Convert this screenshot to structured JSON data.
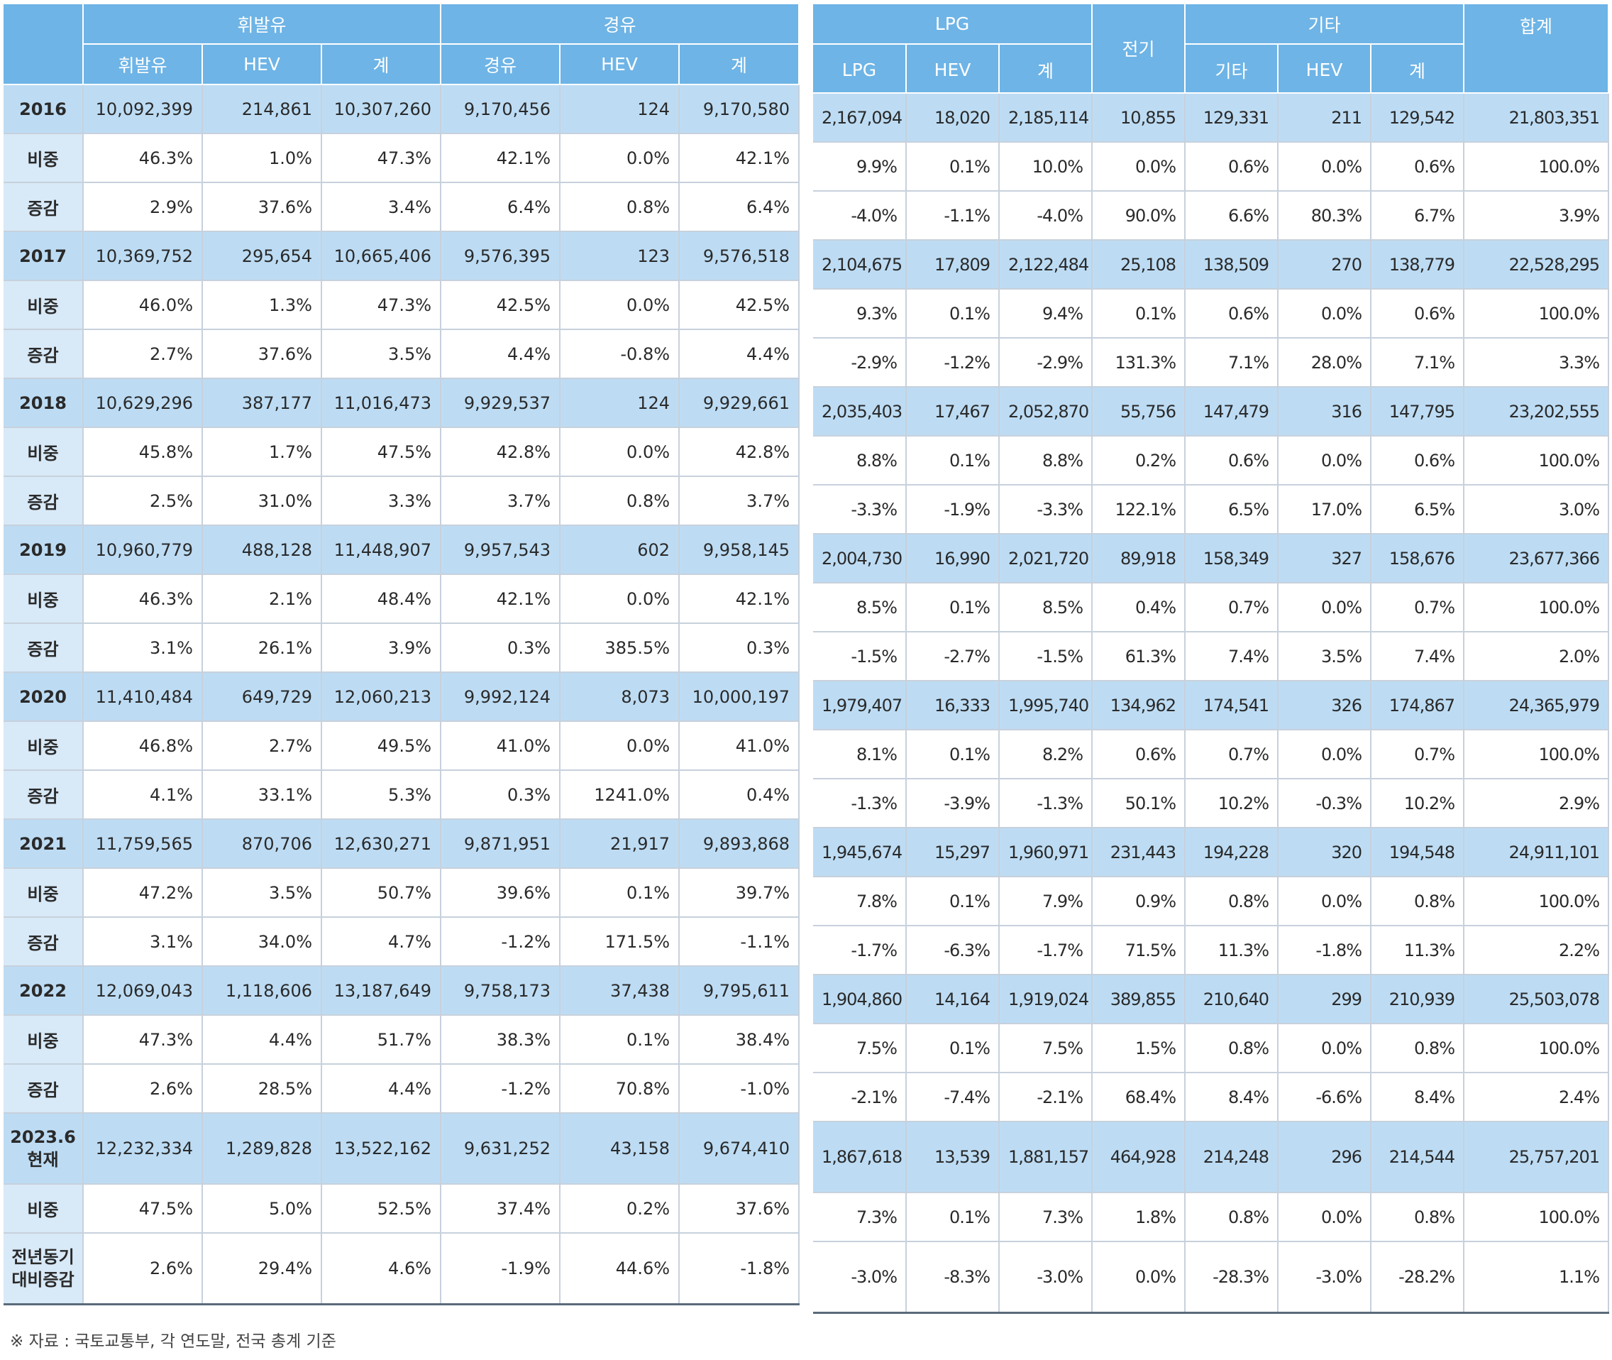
{
  "left_table": {
    "groups": [
      "휘발유",
      "경유"
    ],
    "subheaders": [
      "휘발유",
      "HEV",
      "계",
      "경유",
      "HEV",
      "계"
    ],
    "rows": [
      {
        "label": "2016",
        "type": "year",
        "cells": [
          "10,092,399",
          "214,861",
          "10,307,260",
          "9,170,456",
          "124",
          "9,170,580"
        ]
      },
      {
        "label": "비중",
        "type": "share",
        "cells": [
          "46.3%",
          "1.0%",
          "47.3%",
          "42.1%",
          "0.0%",
          "42.1%"
        ]
      },
      {
        "label": "증감",
        "type": "change",
        "cells": [
          "2.9%",
          "37.6%",
          "3.4%",
          "6.4%",
          "0.8%",
          "6.4%"
        ]
      },
      {
        "label": "2017",
        "type": "year",
        "cells": [
          "10,369,752",
          "295,654",
          "10,665,406",
          "9,576,395",
          "123",
          "9,576,518"
        ]
      },
      {
        "label": "비중",
        "type": "share",
        "cells": [
          "46.0%",
          "1.3%",
          "47.3%",
          "42.5%",
          "0.0%",
          "42.5%"
        ]
      },
      {
        "label": "증감",
        "type": "change",
        "cells": [
          "2.7%",
          "37.6%",
          "3.5%",
          "4.4%",
          "-0.8%",
          "4.4%"
        ]
      },
      {
        "label": "2018",
        "type": "year",
        "cells": [
          "10,629,296",
          "387,177",
          "11,016,473",
          "9,929,537",
          "124",
          "9,929,661"
        ]
      },
      {
        "label": "비중",
        "type": "share",
        "cells": [
          "45.8%",
          "1.7%",
          "47.5%",
          "42.8%",
          "0.0%",
          "42.8%"
        ]
      },
      {
        "label": "증감",
        "type": "change",
        "cells": [
          "2.5%",
          "31.0%",
          "3.3%",
          "3.7%",
          "0.8%",
          "3.7%"
        ]
      },
      {
        "label": "2019",
        "type": "year",
        "cells": [
          "10,960,779",
          "488,128",
          "11,448,907",
          "9,957,543",
          "602",
          "9,958,145"
        ]
      },
      {
        "label": "비중",
        "type": "share",
        "cells": [
          "46.3%",
          "2.1%",
          "48.4%",
          "42.1%",
          "0.0%",
          "42.1%"
        ]
      },
      {
        "label": "증감",
        "type": "change",
        "cells": [
          "3.1%",
          "26.1%",
          "3.9%",
          "0.3%",
          "385.5%",
          "0.3%"
        ]
      },
      {
        "label": "2020",
        "type": "year",
        "cells": [
          "11,410,484",
          "649,729",
          "12,060,213",
          "9,992,124",
          "8,073",
          "10,000,197"
        ]
      },
      {
        "label": "비중",
        "type": "share",
        "cells": [
          "46.8%",
          "2.7%",
          "49.5%",
          "41.0%",
          "0.0%",
          "41.0%"
        ]
      },
      {
        "label": "증감",
        "type": "change",
        "cells": [
          "4.1%",
          "33.1%",
          "5.3%",
          "0.3%",
          "1241.0%",
          "0.4%"
        ]
      },
      {
        "label": "2021",
        "type": "year",
        "cells": [
          "11,759,565",
          "870,706",
          "12,630,271",
          "9,871,951",
          "21,917",
          "9,893,868"
        ]
      },
      {
        "label": "비중",
        "type": "share",
        "cells": [
          "47.2%",
          "3.5%",
          "50.7%",
          "39.6%",
          "0.1%",
          "39.7%"
        ]
      },
      {
        "label": "증감",
        "type": "change",
        "cells": [
          "3.1%",
          "34.0%",
          "4.7%",
          "-1.2%",
          "171.5%",
          "-1.1%"
        ]
      },
      {
        "label": "2022",
        "type": "year",
        "cells": [
          "12,069,043",
          "1,118,606",
          "13,187,649",
          "9,758,173",
          "37,438",
          "9,795,611"
        ]
      },
      {
        "label": "비중",
        "type": "share",
        "cells": [
          "47.3%",
          "4.4%",
          "51.7%",
          "38.3%",
          "0.1%",
          "38.4%"
        ]
      },
      {
        "label": "증감",
        "type": "change",
        "cells": [
          "2.6%",
          "28.5%",
          "4.4%",
          "-1.2%",
          "70.8%",
          "-1.0%"
        ]
      },
      {
        "label": "2023.6\n현재",
        "type": "year",
        "tall": true,
        "cells": [
          "12,232,334",
          "1,289,828",
          "13,522,162",
          "9,631,252",
          "43,158",
          "9,674,410"
        ]
      },
      {
        "label": "비중",
        "type": "share",
        "cells": [
          "47.5%",
          "5.0%",
          "52.5%",
          "37.4%",
          "0.2%",
          "37.6%"
        ]
      },
      {
        "label": "전년동기\n대비증감",
        "type": "change",
        "tall": true,
        "cells": [
          "2.6%",
          "29.4%",
          "4.6%",
          "-1.9%",
          "44.6%",
          "-1.8%"
        ]
      }
    ]
  },
  "right_table": {
    "groups": [
      "LPG",
      "전기",
      "기타",
      "합계"
    ],
    "subheaders": [
      "LPG",
      "HEV",
      "계",
      "기타",
      "HEV",
      "계"
    ],
    "rows": [
      {
        "cells": [
          "2,167,094",
          "18,020",
          "2,185,114",
          "10,855",
          "129,331",
          "211",
          "129,542",
          "21,803,351"
        ]
      },
      {
        "cells": [
          "9.9%",
          "0.1%",
          "10.0%",
          "0.0%",
          "0.6%",
          "0.0%",
          "0.6%",
          "100.0%"
        ]
      },
      {
        "cells": [
          "-4.0%",
          "-1.1%",
          "-4.0%",
          "90.0%",
          "6.6%",
          "80.3%",
          "6.7%",
          "3.9%"
        ]
      },
      {
        "cells": [
          "2,104,675",
          "17,809",
          "2,122,484",
          "25,108",
          "138,509",
          "270",
          "138,779",
          "22,528,295"
        ]
      },
      {
        "cells": [
          "9.3%",
          "0.1%",
          "9.4%",
          "0.1%",
          "0.6%",
          "0.0%",
          "0.6%",
          "100.0%"
        ]
      },
      {
        "cells": [
          "-2.9%",
          "-1.2%",
          "-2.9%",
          "131.3%",
          "7.1%",
          "28.0%",
          "7.1%",
          "3.3%"
        ]
      },
      {
        "cells": [
          "2,035,403",
          "17,467",
          "2,052,870",
          "55,756",
          "147,479",
          "316",
          "147,795",
          "23,202,555"
        ]
      },
      {
        "cells": [
          "8.8%",
          "0.1%",
          "8.8%",
          "0.2%",
          "0.6%",
          "0.0%",
          "0.6%",
          "100.0%"
        ]
      },
      {
        "cells": [
          "-3.3%",
          "-1.9%",
          "-3.3%",
          "122.1%",
          "6.5%",
          "17.0%",
          "6.5%",
          "3.0%"
        ]
      },
      {
        "cells": [
          "2,004,730",
          "16,990",
          "2,021,720",
          "89,918",
          "158,349",
          "327",
          "158,676",
          "23,677,366"
        ]
      },
      {
        "cells": [
          "8.5%",
          "0.1%",
          "8.5%",
          "0.4%",
          "0.7%",
          "0.0%",
          "0.7%",
          "100.0%"
        ]
      },
      {
        "cells": [
          "-1.5%",
          "-2.7%",
          "-1.5%",
          "61.3%",
          "7.4%",
          "3.5%",
          "7.4%",
          "2.0%"
        ]
      },
      {
        "cells": [
          "1,979,407",
          "16,333",
          "1,995,740",
          "134,962",
          "174,541",
          "326",
          "174,867",
          "24,365,979"
        ]
      },
      {
        "cells": [
          "8.1%",
          "0.1%",
          "8.2%",
          "0.6%",
          "0.7%",
          "0.0%",
          "0.7%",
          "100.0%"
        ]
      },
      {
        "cells": [
          "-1.3%",
          "-3.9%",
          "-1.3%",
          "50.1%",
          "10.2%",
          "-0.3%",
          "10.2%",
          "2.9%"
        ]
      },
      {
        "cells": [
          "1,945,674",
          "15,297",
          "1,960,971",
          "231,443",
          "194,228",
          "320",
          "194,548",
          "24,911,101"
        ]
      },
      {
        "cells": [
          "7.8%",
          "0.1%",
          "7.9%",
          "0.9%",
          "0.8%",
          "0.0%",
          "0.8%",
          "100.0%"
        ]
      },
      {
        "cells": [
          "-1.7%",
          "-6.3%",
          "-1.7%",
          "71.5%",
          "11.3%",
          "-1.8%",
          "11.3%",
          "2.2%"
        ]
      },
      {
        "cells": [
          "1,904,860",
          "14,164",
          "1,919,024",
          "389,855",
          "210,640",
          "299",
          "210,939",
          "25,503,078"
        ]
      },
      {
        "cells": [
          "7.5%",
          "0.1%",
          "7.5%",
          "1.5%",
          "0.8%",
          "0.0%",
          "0.8%",
          "100.0%"
        ]
      },
      {
        "cells": [
          "-2.1%",
          "-7.4%",
          "-2.1%",
          "68.4%",
          "8.4%",
          "-6.6%",
          "8.4%",
          "2.4%"
        ]
      },
      {
        "cells": [
          "1,867,618",
          "13,539",
          "1,881,157",
          "464,928",
          "214,248",
          "296",
          "214,544",
          "25,757,201"
        ]
      },
      {
        "cells": [
          "7.3%",
          "0.1%",
          "7.3%",
          "1.8%",
          "0.8%",
          "0.0%",
          "0.8%",
          "100.0%"
        ]
      },
      {
        "cells": [
          "-3.0%",
          "-8.3%",
          "-3.0%",
          "0.0%",
          "-28.3%",
          "-3.0%",
          "-28.2%",
          "1.1%"
        ]
      }
    ]
  },
  "source_note": "※ 자료 : 국토교통부, 각 연도말, 전국 총계 기준",
  "colors": {
    "header_bg": "#6eb4e6",
    "year_row_bg": "#bddcf4",
    "row_label_bg": "#d8e9f7",
    "grid_line": "#c7d1dc"
  }
}
